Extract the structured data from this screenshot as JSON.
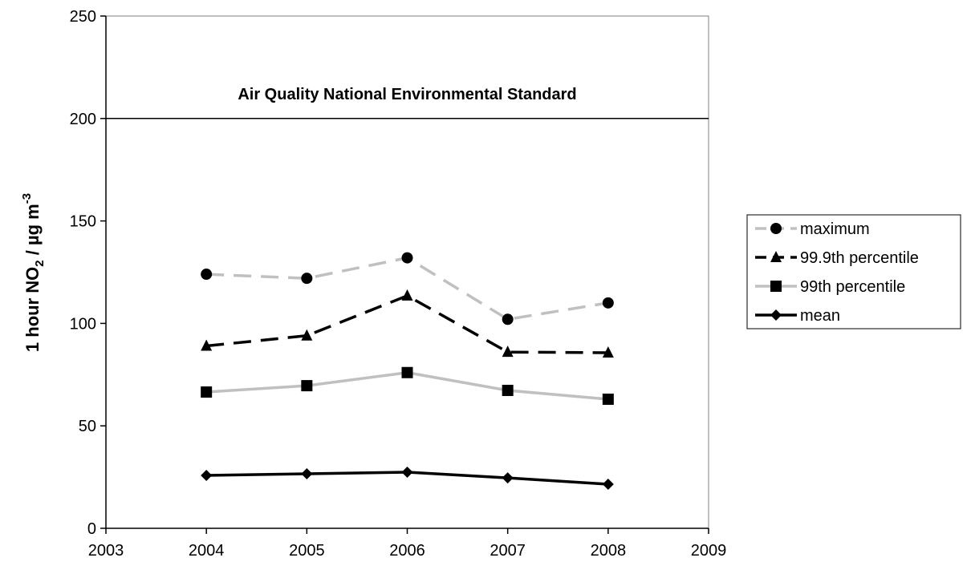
{
  "chart_data": {
    "type": "line",
    "y_label": {
      "main": "1 hour NO",
      "sub": "2",
      "mid": " / µg m",
      "sup": "-3"
    },
    "x": [
      2004,
      2005,
      2006,
      2007,
      2008
    ],
    "xlim": [
      2003,
      2009
    ],
    "xticks": [
      2003,
      2004,
      2005,
      2006,
      2007,
      2008,
      2009
    ],
    "ylim": [
      0,
      250
    ],
    "yticks": [
      0,
      50,
      100,
      150,
      200,
      250
    ],
    "reference_line": {
      "value": 200,
      "label": "Air Quality National Environmental Standard"
    },
    "legend": "right",
    "series": [
      {
        "name": "maximum",
        "color": "#c0c0c0",
        "dash": "dashed",
        "marker": "circle",
        "values": [
          124,
          122,
          132,
          102,
          110
        ]
      },
      {
        "name": "99.9th percentile",
        "color": "#000000",
        "dash": "dashed",
        "marker": "triangle",
        "values": [
          89,
          94,
          113.5,
          86,
          85.7
        ]
      },
      {
        "name": "99th percentile",
        "color": "#c0c0c0",
        "dash": "solid",
        "marker": "square",
        "values": [
          66.5,
          69.6,
          76,
          67.3,
          63
        ]
      },
      {
        "name": "mean",
        "color": "#000000",
        "dash": "solid",
        "marker": "diamond",
        "values": [
          25.8,
          26.6,
          27.4,
          24.6,
          21.5
        ]
      }
    ]
  }
}
